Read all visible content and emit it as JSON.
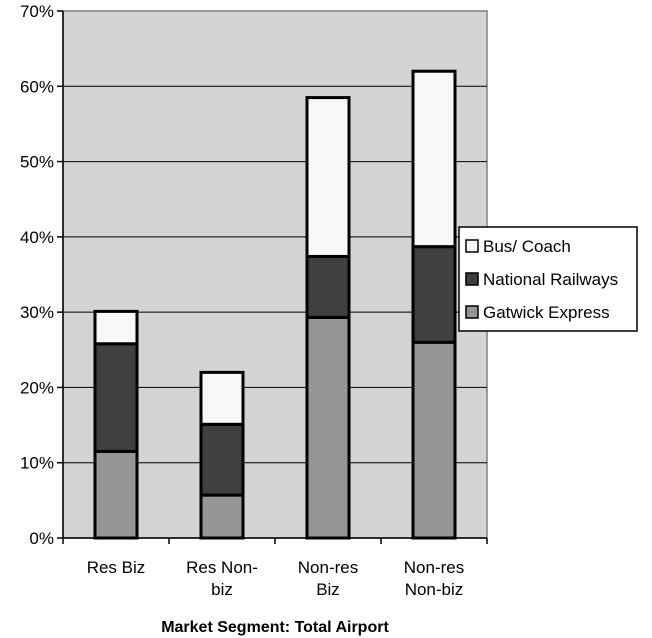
{
  "chart_data": {
    "type": "bar",
    "stacked": true,
    "categories": [
      [
        "Res Biz"
      ],
      [
        "Res Non-",
        "biz"
      ],
      [
        "Non-res",
        "Biz"
      ],
      [
        "Non-res",
        "Non-biz"
      ]
    ],
    "series": [
      {
        "name": "Gatwick Express",
        "values": [
          11.5,
          5.7,
          29.3,
          26.0
        ],
        "color": "#969696"
      },
      {
        "name": "National Railways",
        "values": [
          14.3,
          9.4,
          8.1,
          12.7
        ],
        "color": "#404040"
      },
      {
        "name": "Bus/ Coach",
        "values": [
          4.3,
          6.9,
          21.1,
          23.3
        ],
        "color": "#f8f8f8"
      }
    ],
    "title": "",
    "xlabel": "Market Segment: Total Airport",
    "ylabel": "",
    "ylim": [
      0,
      70
    ],
    "yticks": [
      0,
      10,
      20,
      30,
      40,
      50,
      60,
      70
    ],
    "ytick_format": "percent",
    "grid": true,
    "legend": {
      "placement": "right",
      "order": [
        "Bus/ Coach",
        "National Railways",
        "Gatwick Express"
      ]
    },
    "plot_background": "#d4d4d4"
  }
}
